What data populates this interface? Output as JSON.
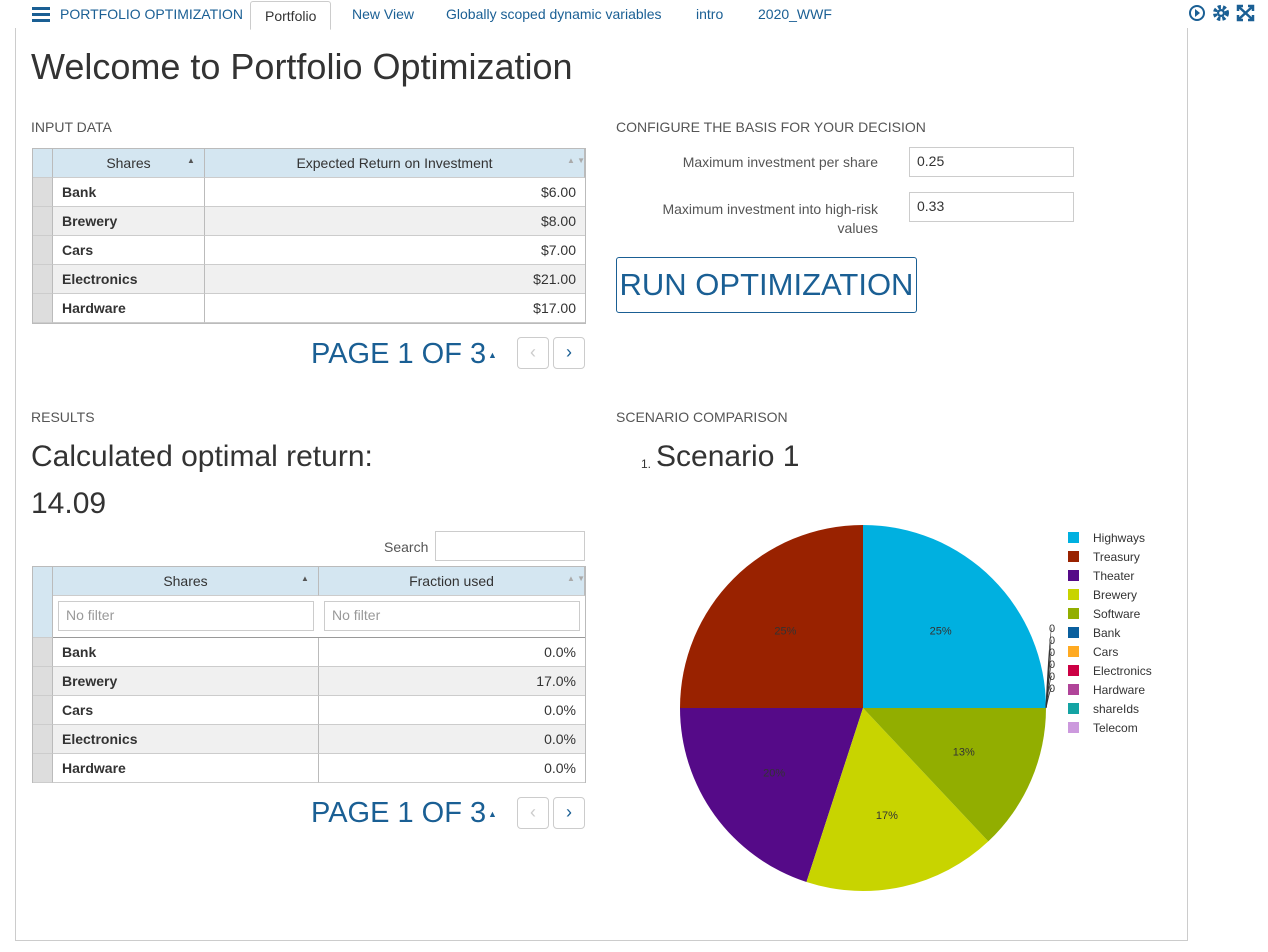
{
  "nav": {
    "app_title": "PORTFOLIO OPTIMIZATION",
    "tabs": [
      "Portfolio",
      "New View",
      "Globally scoped dynamic variables",
      "intro",
      "2020_WWF"
    ],
    "active_tab": 0
  },
  "header": {
    "title": "Welcome to Portfolio Optimization"
  },
  "input_data": {
    "title": "INPUT DATA",
    "columns": [
      "Shares",
      "Expected Return on Investment"
    ],
    "rows": [
      [
        "Bank",
        "$6.00"
      ],
      [
        "Brewery",
        "$8.00"
      ],
      [
        "Cars",
        "$7.00"
      ],
      [
        "Electronics",
        "$21.00"
      ],
      [
        "Hardware",
        "$17.00"
      ]
    ],
    "pagination": "PAGE 1 OF 3"
  },
  "config": {
    "title": "CONFIGURE THE BASIS FOR YOUR DECISION",
    "fields": [
      {
        "label": "Maximum investment per share",
        "value": "0.25"
      },
      {
        "label": "Maximum investment into high-risk values",
        "value": "0.33"
      }
    ],
    "button": "RUN OPTIMIZATION"
  },
  "results": {
    "title": "RESULTS",
    "headline": "Calculated optimal return:",
    "value": "14.09",
    "search_label": "Search",
    "columns": [
      "Shares",
      "Fraction used"
    ],
    "filter_placeholder": "No filter",
    "rows": [
      [
        "Bank",
        "0.0%"
      ],
      [
        "Brewery",
        "17.0%"
      ],
      [
        "Cars",
        "0.0%"
      ],
      [
        "Electronics",
        "0.0%"
      ],
      [
        "Hardware",
        "0.0%"
      ]
    ],
    "pagination": "PAGE 1 OF 3"
  },
  "scenario": {
    "title": "SCENARIO COMPARISON",
    "number": "1.",
    "name": "Scenario 1"
  },
  "chart_data": {
    "type": "pie",
    "categories": [
      "Highways",
      "Treasury",
      "Theater",
      "Brewery",
      "Software",
      "Bank",
      "Cars",
      "Electronics",
      "Hardware",
      "shareIds",
      "Telecom"
    ],
    "values": [
      25,
      25,
      20,
      17,
      13,
      0,
      0,
      0,
      0,
      0,
      0
    ],
    "value_labels": [
      "25%",
      "25%",
      "20%",
      "17%",
      "13%",
      "0%",
      "0%",
      "0%",
      "0%",
      "0%",
      "0%"
    ],
    "colors": [
      "#00b0e0",
      "#992200",
      "#550a88",
      "#c8d400",
      "#92ae00",
      "#0a5f9e",
      "#ffaa22",
      "#cc0044",
      "#b04499",
      "#14a3a3",
      "#cc99dd"
    ]
  }
}
